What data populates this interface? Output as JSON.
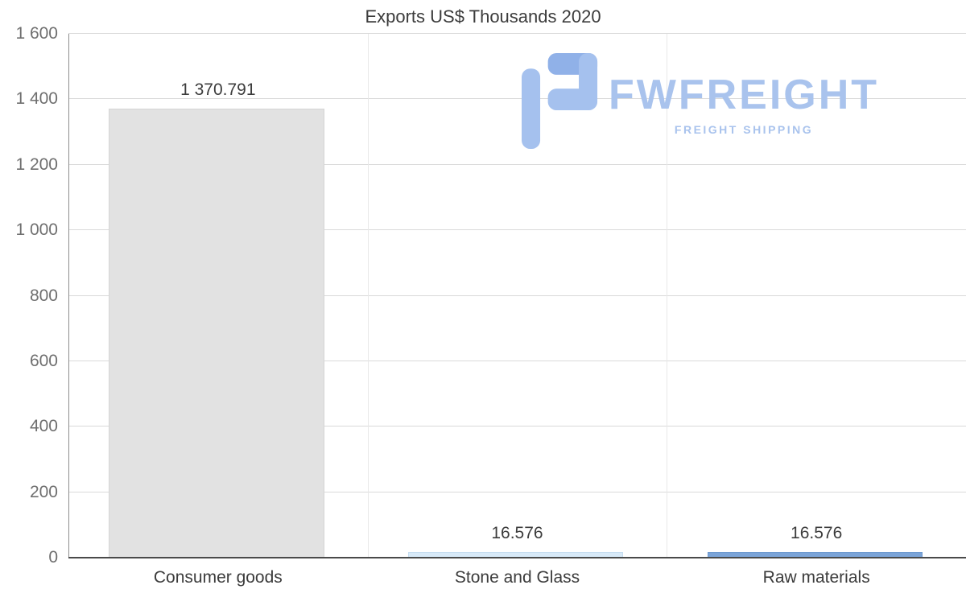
{
  "chart_data": {
    "type": "bar",
    "title": "Exports US$ Thousands 2020",
    "categories": [
      "Consumer goods",
      "Stone and Glass",
      "Raw materials"
    ],
    "values": [
      1370.791,
      16.576,
      16.576
    ],
    "value_labels": [
      "1 370.791",
      "16.576",
      "16.576"
    ],
    "bar_colors": [
      "#e2e2e2",
      "#d8eaf8",
      "#7ba4d8"
    ],
    "bar_border_colors": [
      "#d5d5d5",
      "#c6ddf0",
      "#6d99cf"
    ],
    "xlabel": "",
    "ylabel": "",
    "ylim": [
      0,
      1600
    ],
    "yticks": [
      {
        "value": 0,
        "label": "0"
      },
      {
        "value": 200,
        "label": "200"
      },
      {
        "value": 400,
        "label": "400"
      },
      {
        "value": 600,
        "label": "600"
      },
      {
        "value": 800,
        "label": "800"
      },
      {
        "value": 1000,
        "label": "1 000"
      },
      {
        "value": 1200,
        "label": "1 200"
      },
      {
        "value": 1400,
        "label": "1 400"
      },
      {
        "value": 1600,
        "label": "1 600"
      }
    ],
    "grid": "horizontal gridlines plus vertical category separators",
    "legend": "none"
  },
  "watermark": {
    "name": "FWFREIGHT",
    "tagline": "FREIGHT SHIPPING",
    "color": "#a9c3ed",
    "icon_color": "#a5c1ee",
    "icon_accent_color": "#90b1e8"
  }
}
